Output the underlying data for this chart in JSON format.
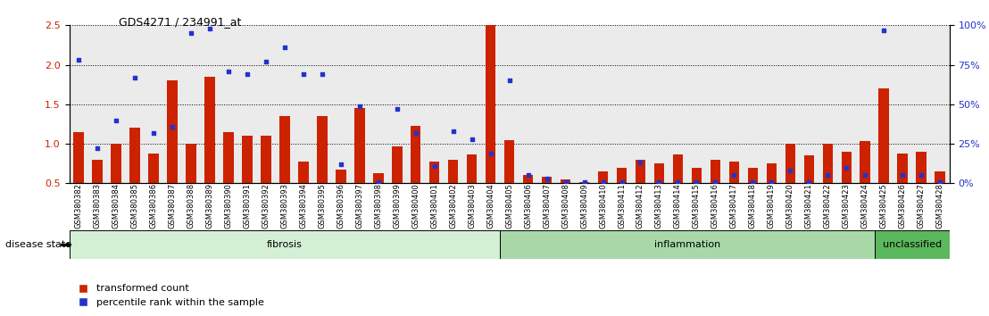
{
  "title": "GDS4271 / 234991_at",
  "samples": [
    "GSM380382",
    "GSM380383",
    "GSM380384",
    "GSM380385",
    "GSM380386",
    "GSM380387",
    "GSM380388",
    "GSM380389",
    "GSM380390",
    "GSM380391",
    "GSM380392",
    "GSM380393",
    "GSM380394",
    "GSM380395",
    "GSM380396",
    "GSM380397",
    "GSM380398",
    "GSM380399",
    "GSM380400",
    "GSM380401",
    "GSM380402",
    "GSM380403",
    "GSM380404",
    "GSM380405",
    "GSM380406",
    "GSM380407",
    "GSM380408",
    "GSM380409",
    "GSM380410",
    "GSM380411",
    "GSM380412",
    "GSM380413",
    "GSM380414",
    "GSM380415",
    "GSM380416",
    "GSM380417",
    "GSM380418",
    "GSM380419",
    "GSM380420",
    "GSM380421",
    "GSM380422",
    "GSM380423",
    "GSM380424",
    "GSM380425",
    "GSM380426",
    "GSM380427",
    "GSM380428"
  ],
  "bar_values": [
    1.15,
    0.8,
    1.0,
    1.2,
    0.88,
    1.8,
    1.0,
    1.85,
    1.15,
    1.1,
    1.1,
    1.35,
    0.78,
    1.35,
    0.67,
    1.45,
    0.63,
    0.97,
    1.23,
    0.77,
    0.8,
    0.87,
    2.5,
    1.05,
    0.6,
    0.58,
    0.55,
    0.52,
    0.65,
    0.7,
    0.8,
    0.75,
    0.87,
    0.7,
    0.8,
    0.78,
    0.7,
    0.75,
    1.0,
    0.85,
    1.0,
    0.9,
    1.03,
    1.7,
    0.88,
    0.9,
    0.65
  ],
  "scatter_values_pct": [
    78,
    22,
    40,
    67,
    32,
    36,
    95,
    98,
    71,
    69,
    77,
    86,
    69,
    69,
    12,
    49,
    1,
    47,
    32,
    11,
    33,
    28,
    19,
    65,
    5,
    3,
    1,
    1,
    1,
    1,
    13,
    1,
    1,
    1,
    1,
    5,
    1,
    1,
    8,
    1,
    5,
    10,
    5,
    97,
    5,
    5,
    1
  ],
  "disease_groups": [
    {
      "label": "fibrosis",
      "start": 0,
      "end": 23,
      "color": "#d4f0d4"
    },
    {
      "label": "inflammation",
      "start": 23,
      "end": 43,
      "color": "#a8d8a8"
    },
    {
      "label": "unclassified",
      "start": 43,
      "end": 47,
      "color": "#5cb85c"
    }
  ],
  "ylim_left": [
    0.5,
    2.5
  ],
  "ylim_right": [
    0,
    100
  ],
  "yticks_left": [
    0.5,
    1.0,
    1.5,
    2.0,
    2.5
  ],
  "yticks_right": [
    0,
    25,
    50,
    75,
    100
  ],
  "bar_color": "#cc2200",
  "scatter_color": "#2233cc",
  "bg_color": "#ebebeb",
  "bar_width": 0.55,
  "disease_state_label": "disease state"
}
